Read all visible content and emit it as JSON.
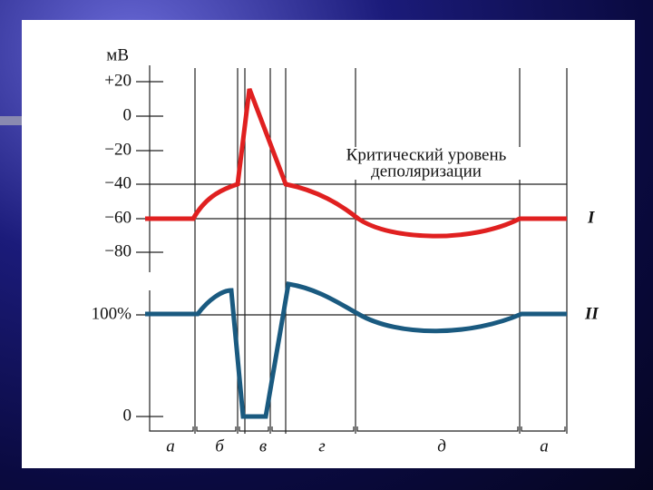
{
  "figure": {
    "unit": "мВ",
    "mv_ticks": [
      "+20",
      "0",
      "−20",
      "−40",
      "−60",
      "−80"
    ],
    "excitability_ticks": [
      "100%",
      "0"
    ],
    "threshold_label": [
      "Критический уровень",
      "деполяризации"
    ],
    "curve_labels": [
      "I",
      "II"
    ],
    "phases": [
      "а",
      "б",
      "в",
      "г",
      "д",
      "а"
    ]
  }
}
